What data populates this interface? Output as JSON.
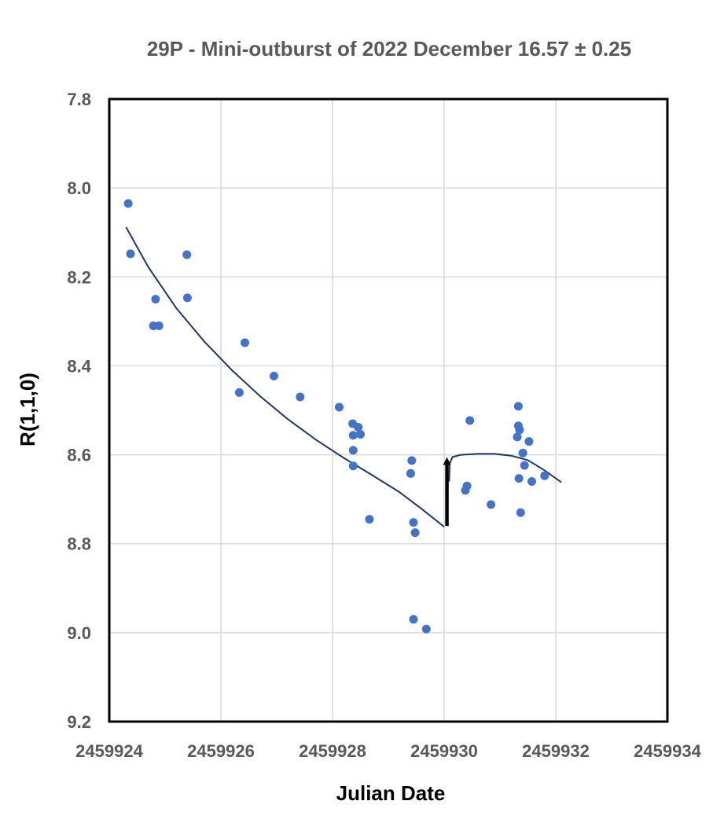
{
  "chart_data": {
    "type": "scatter",
    "title": "29P  -  Mini-outburst of 2022 December 16.57 ± 0.25",
    "xlabel": "Julian Date",
    "ylabel": "R(1,1,0)",
    "xlim": [
      2459924,
      2459934
    ],
    "ylim": [
      7.8,
      9.2
    ],
    "y_inverted": true,
    "xticks": [
      2459924,
      2459926,
      2459928,
      2459930,
      2459932,
      2459934
    ],
    "xtick_labels": [
      "2459924",
      "2459926",
      "2459928",
      "2459930",
      "2459932",
      "2459934"
    ],
    "yticks": [
      7.8,
      8.0,
      8.2,
      8.4,
      8.6,
      8.8,
      9.0,
      9.2
    ],
    "ytick_labels": [
      "7.8",
      "8.0",
      "8.2",
      "8.4",
      "8.6",
      "8.8",
      "9.0",
      "9.2"
    ],
    "grid": true,
    "legend": "none",
    "series": [
      {
        "type": "scatter",
        "color": "#4472C4",
        "points": [
          [
            2459924.34,
            8.035
          ],
          [
            2459924.38,
            8.148
          ],
          [
            2459924.79,
            8.31
          ],
          [
            2459924.83,
            8.25
          ],
          [
            2459924.89,
            8.31
          ],
          [
            2459925.39,
            8.15
          ],
          [
            2459925.4,
            8.247
          ],
          [
            2459926.33,
            8.46
          ],
          [
            2459926.43,
            8.348
          ],
          [
            2459926.95,
            8.423
          ],
          [
            2459927.42,
            8.47
          ],
          [
            2459928.12,
            8.493
          ],
          [
            2459928.36,
            8.53
          ],
          [
            2459928.37,
            8.556
          ],
          [
            2459928.37,
            8.59
          ],
          [
            2459928.37,
            8.625
          ],
          [
            2459928.46,
            8.538
          ],
          [
            2459928.5,
            8.554
          ],
          [
            2459928.66,
            8.745
          ],
          [
            2459929.4,
            8.642
          ],
          [
            2459929.42,
            8.613
          ],
          [
            2459929.45,
            8.752
          ],
          [
            2459929.45,
            8.97
          ],
          [
            2459929.48,
            8.775
          ],
          [
            2459929.68,
            8.992
          ],
          [
            2459930.38,
            8.68
          ],
          [
            2459930.41,
            8.67
          ],
          [
            2459930.46,
            8.523
          ],
          [
            2459930.84,
            8.712
          ],
          [
            2459931.31,
            8.56
          ],
          [
            2459931.33,
            8.535
          ],
          [
            2459931.33,
            8.491
          ],
          [
            2459931.34,
            8.653
          ],
          [
            2459931.35,
            8.544
          ],
          [
            2459931.37,
            8.73
          ],
          [
            2459931.41,
            8.596
          ],
          [
            2459931.44,
            8.624
          ],
          [
            2459931.52,
            8.57
          ],
          [
            2459931.57,
            8.66
          ],
          [
            2459931.8,
            8.647
          ]
        ]
      },
      {
        "type": "line",
        "color": "#203864",
        "points": [
          [
            2459924.3,
            8.088
          ],
          [
            2459924.7,
            8.178
          ],
          [
            2459925.2,
            8.27
          ],
          [
            2459925.7,
            8.345
          ],
          [
            2459926.2,
            8.41
          ],
          [
            2459926.7,
            8.468
          ],
          [
            2459927.2,
            8.52
          ],
          [
            2459927.7,
            8.566
          ],
          [
            2459928.2,
            8.607
          ],
          [
            2459928.7,
            8.645
          ],
          [
            2459929.2,
            8.684
          ],
          [
            2459929.6,
            8.722
          ],
          [
            2459930.0,
            8.762
          ]
        ]
      },
      {
        "type": "line",
        "color": "#203864",
        "points": [
          [
            2459930.09,
            8.66
          ],
          [
            2459930.1,
            8.62
          ],
          [
            2459930.15,
            8.605
          ],
          [
            2459930.3,
            8.6
          ],
          [
            2459930.6,
            8.598
          ],
          [
            2459930.9,
            8.598
          ],
          [
            2459931.2,
            8.602
          ],
          [
            2459931.5,
            8.612
          ],
          [
            2459931.8,
            8.635
          ],
          [
            2459932.1,
            8.662
          ]
        ]
      }
    ],
    "annotations": [
      {
        "type": "arrow",
        "from": [
          2459930.05,
          8.76
        ],
        "to": [
          2459930.05,
          8.6
        ],
        "color": "#000000"
      }
    ]
  }
}
